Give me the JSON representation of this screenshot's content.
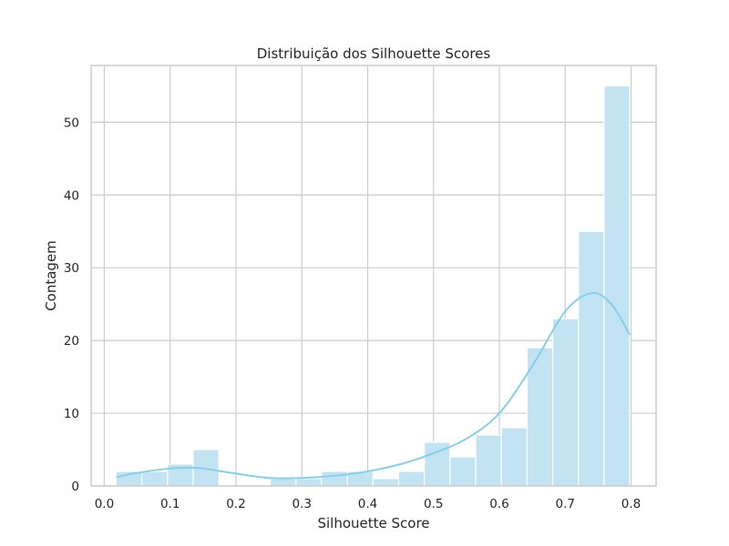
{
  "chart_data": {
    "type": "bar",
    "title": "Distribuição dos Silhouette Scores",
    "xlabel": "Silhouette Score",
    "ylabel": "Contagem",
    "xlim": [
      -0.02,
      0.838
    ],
    "ylim": [
      0,
      57.8
    ],
    "grid": true,
    "x_ticks": [
      0.0,
      0.1,
      0.2,
      0.3,
      0.4,
      0.5,
      0.6,
      0.7,
      0.8
    ],
    "x_tick_labels": [
      "0.0",
      "0.1",
      "0.2",
      "0.3",
      "0.4",
      "0.5",
      "0.6",
      "0.7",
      "0.8"
    ],
    "y_ticks": [
      0,
      10,
      20,
      30,
      40,
      50
    ],
    "y_tick_labels": [
      "0",
      "10",
      "20",
      "30",
      "40",
      "50"
    ],
    "bin_edges": [
      0.018,
      0.057,
      0.096,
      0.135,
      0.174,
      0.213,
      0.252,
      0.291,
      0.33,
      0.369,
      0.408,
      0.447,
      0.486,
      0.525,
      0.564,
      0.603,
      0.642,
      0.681,
      0.72,
      0.759,
      0.798
    ],
    "counts": [
      2,
      2,
      3,
      5,
      0,
      0,
      1,
      1,
      2,
      2,
      1,
      2,
      6,
      4,
      7,
      8,
      19,
      23,
      35,
      55
    ],
    "kde": {
      "x": [
        0.018,
        0.05,
        0.1,
        0.13,
        0.15,
        0.2,
        0.25,
        0.3,
        0.35,
        0.4,
        0.45,
        0.5,
        0.55,
        0.6,
        0.65,
        0.7,
        0.74,
        0.77,
        0.798
      ],
      "y": [
        1.2,
        1.8,
        2.4,
        2.5,
        2.4,
        1.7,
        1.1,
        1.1,
        1.4,
        2.0,
        3.0,
        4.5,
        6.5,
        10.0,
        16.5,
        24.0,
        26.5,
        25.0,
        20.8
      ]
    },
    "colors": {
      "bar_fill": "#c1e3f2",
      "bar_edge": "#ffffff",
      "kde_line": "#87ceeb",
      "grid": "#cccccc",
      "frame": "#cccccc",
      "text": "#262626"
    }
  }
}
